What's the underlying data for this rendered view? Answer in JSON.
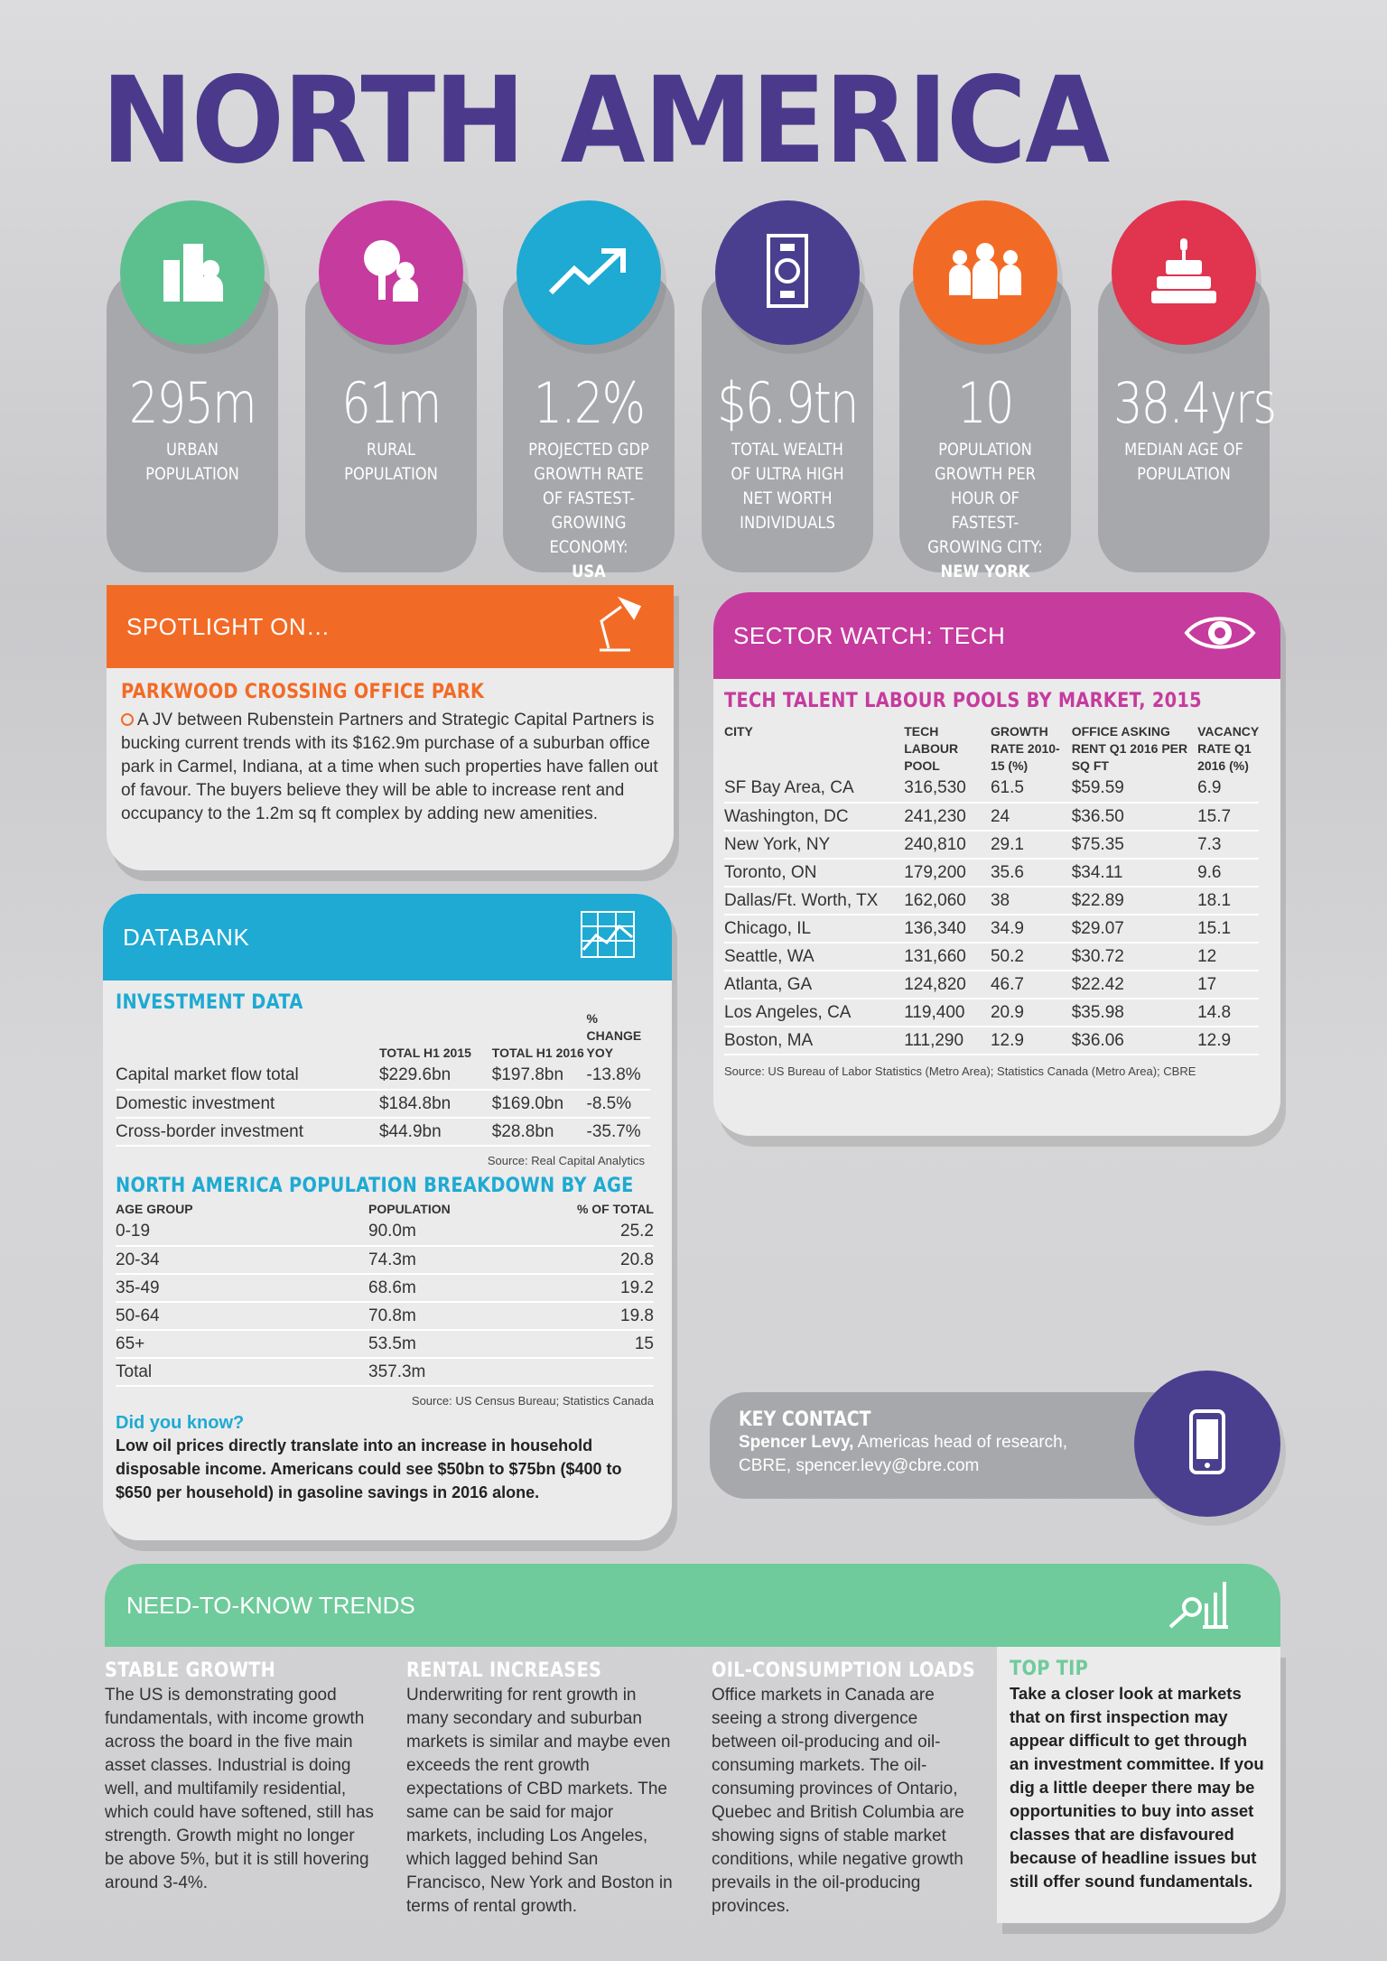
{
  "title": "NORTH AMERICA",
  "colors": {
    "purple": "#4b3a8b",
    "green": "#5cc08e",
    "magenta": "#c63b9e",
    "cyan": "#1eaad2",
    "navy": "#4a3f8f",
    "orange": "#f26b26",
    "red": "#e0344f"
  },
  "stats": [
    {
      "value": "295m",
      "label": "URBAN POPULATION",
      "bold": "",
      "icon": "buildings-icon",
      "color": "#5cc08e"
    },
    {
      "value": "61m",
      "label": "RURAL POPULATION",
      "bold": "",
      "icon": "tree-person-icon",
      "color": "#c63b9e"
    },
    {
      "value": "1.2%",
      "label": "PROJECTED GDP GROWTH RATE OF FASTEST-GROWING ECONOMY:",
      "bold": "USA",
      "icon": "trend-arrow-icon",
      "color": "#1eaad2"
    },
    {
      "value": "$6.9tn",
      "label": "TOTAL WEALTH OF ULTRA HIGH NET WORTH INDIVIDUALS",
      "bold": "",
      "icon": "banknote-icon",
      "color": "#4a3f8f"
    },
    {
      "value": "10",
      "label": "POPULATION GROWTH PER HOUR OF FASTEST-GROWING CITY:",
      "bold": "NEW YORK",
      "icon": "people-icon",
      "color": "#f26b26"
    },
    {
      "value": "38.4yrs",
      "label": "MEDIAN AGE OF POPULATION",
      "bold": "",
      "icon": "birthday-cake-icon",
      "color": "#e0344f"
    }
  ],
  "spotlight": {
    "header": "SPOTLIGHT ON…",
    "subtitle": "PARKWOOD CROSSING OFFICE PARK",
    "text": "A JV between Rubenstein Partners and Strategic Capital Partners is bucking current trends with its $162.9m purchase of a suburban office park in Carmel, Indiana, at a time when such properties have fallen out of favour. The buyers believe they will be able to increase rent and occupancy to the 1.2m sq ft complex by adding new amenities."
  },
  "databank": {
    "header": "DATABANK",
    "investment": {
      "title": "INVESTMENT DATA",
      "columns": [
        "",
        "TOTAL H1 2015",
        "TOTAL H1 2016",
        "% CHANGE YOY"
      ],
      "rows": [
        [
          "Capital market flow total",
          "$229.6bn",
          "$197.8bn",
          "-13.8%"
        ],
        [
          "Domestic investment",
          "$184.8bn",
          "$169.0bn",
          "-8.5%"
        ],
        [
          "Cross-border investment",
          "$44.9bn",
          "$28.8bn",
          "-35.7%"
        ]
      ],
      "source": "Source: Real Capital Analytics"
    },
    "population": {
      "title": "NORTH AMERICA POPULATION BREAKDOWN BY AGE",
      "columns": [
        "AGE GROUP",
        "POPULATION",
        "% OF TOTAL"
      ],
      "rows": [
        [
          "0-19",
          "90.0m",
          "25.2"
        ],
        [
          "20-34",
          "74.3m",
          "20.8"
        ],
        [
          "35-49",
          "68.6m",
          "19.2"
        ],
        [
          "50-64",
          "70.8m",
          "19.8"
        ],
        [
          "65+",
          "53.5m",
          "15"
        ],
        [
          "Total",
          "357.3m",
          ""
        ]
      ],
      "source": "Source: US Census Bureau; Statistics Canada"
    },
    "did_you_know": {
      "title": "Did you know?",
      "text": "Low oil prices directly translate into an increase in household disposable income. Americans could see $50bn to $75bn ($400 to $650 per household) in gasoline savings in 2016 alone."
    }
  },
  "sector": {
    "header": "SECTOR WATCH: TECH",
    "subtitle": "TECH TALENT LABOUR POOLS BY MARKET, 2015",
    "columns": [
      "CITY",
      "TECH LABOUR POOL",
      "GROWTH RATE 2010-15 (%)",
      "OFFICE ASKING RENT Q1 2016 PER SQ FT",
      "VACANCY RATE Q1 2016 (%)"
    ],
    "rows": [
      [
        "SF Bay Area, CA",
        "316,530",
        "61.5",
        "$59.59",
        "6.9"
      ],
      [
        "Washington, DC",
        "241,230",
        "24",
        "$36.50",
        "15.7"
      ],
      [
        "New York, NY",
        "240,810",
        "29.1",
        "$75.35",
        "7.3"
      ],
      [
        "Toronto, ON",
        "179,200",
        "35.6",
        "$34.11",
        "9.6"
      ],
      [
        "Dallas/Ft. Worth, TX",
        "162,060",
        "38",
        "$22.89",
        "18.1"
      ],
      [
        "Chicago, IL",
        "136,340",
        "34.9",
        "$29.07",
        "15.1"
      ],
      [
        "Seattle, WA",
        "131,660",
        "50.2",
        "$30.72",
        "12"
      ],
      [
        "Atlanta, GA",
        "124,820",
        "46.7",
        "$22.42",
        "17"
      ],
      [
        "Los Angeles, CA",
        "119,400",
        "20.9",
        "$35.98",
        "14.8"
      ],
      [
        "Boston, MA",
        "111,290",
        "12.9",
        "$36.06",
        "12.9"
      ]
    ],
    "source": "Source: US Bureau of Labor Statistics (Metro Area); Statistics Canada (Metro Area); CBRE"
  },
  "contact": {
    "title": "KEY CONTACT",
    "name": "Spencer Levy,",
    "role": " Americas head of research,",
    "email": "CBRE, spencer.levy@cbre.com"
  },
  "trends": {
    "header": "NEED-TO-KNOW TRENDS",
    "columns": [
      {
        "title": "STABLE GROWTH",
        "text": "The US is demonstrating good fundamentals, with income growth across the board in the five main asset classes. Industrial is doing well, and multifamily residential, which could have softened, still has strength. Growth might no longer be above 5%, but it is still hovering around 3-4%."
      },
      {
        "title": "RENTAL INCREASES",
        "text": "Underwriting for rent growth in many secondary and suburban markets is similar and maybe even exceeds the rent growth expectations of CBD markets. The same can be said for major markets, including Los Angeles, which lagged behind San Francisco, New York and Boston in terms of rental growth."
      },
      {
        "title": "OIL-CONSUMPTION LOADS",
        "text": "Office markets in Canada are seeing a strong divergence between oil-producing and oil-consuming markets. The oil-consuming provinces of Ontario, Quebec and British Columbia are showing signs of stable market conditions, while negative growth prevails in the oil-producing provinces."
      }
    ],
    "tip": {
      "title": "TOP TIP",
      "text": "Take a closer look at markets that on first inspection may appear difficult to get through an investment committee. If you dig a little deeper there may be opportunities to buy into asset classes that are disfavoured because of headline issues but still offer sound fundamentals."
    }
  }
}
